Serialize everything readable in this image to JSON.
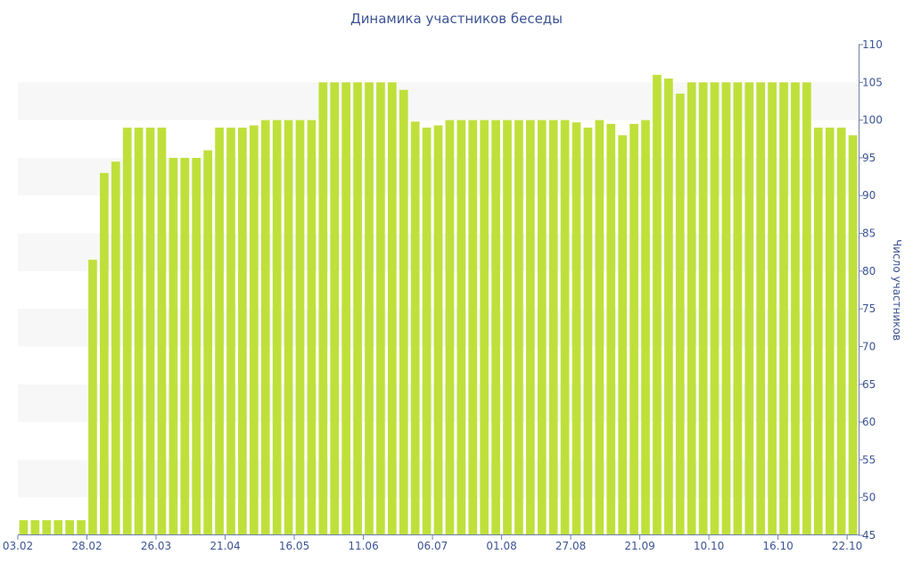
{
  "chart_data": {
    "type": "bar",
    "title": "Динамика участников беседы",
    "xlabel": "",
    "ylabel": "Число участников",
    "y_axis_side": "right",
    "ylim": [
      45,
      110
    ],
    "y_ticks": [
      45,
      50,
      55,
      60,
      65,
      70,
      75,
      80,
      85,
      90,
      95,
      100,
      105,
      110
    ],
    "grid": "alternating horizontal bands",
    "x_tick_labels": [
      {
        "index": 0,
        "label": "03.02"
      },
      {
        "index": 6,
        "label": "28.02"
      },
      {
        "index": 12,
        "label": "26.03"
      },
      {
        "index": 18,
        "label": "21.04"
      },
      {
        "index": 24,
        "label": "16.05"
      },
      {
        "index": 30,
        "label": "11.06"
      },
      {
        "index": 36,
        "label": "06.07"
      },
      {
        "index": 42,
        "label": "01.08"
      },
      {
        "index": 48,
        "label": "27.08"
      },
      {
        "index": 54,
        "label": "21.09"
      },
      {
        "index": 60,
        "label": "10.10"
      },
      {
        "index": 66,
        "label": "16.10"
      },
      {
        "index": 72,
        "label": "22.10"
      }
    ],
    "series": [
      {
        "color": "#bfe03a",
        "values": [
          47,
          47,
          47,
          47,
          47,
          47,
          81.5,
          93,
          94.5,
          99,
          99,
          99,
          99,
          95,
          95,
          95,
          96,
          99,
          99,
          99,
          99.3,
          100,
          100,
          100,
          100,
          100,
          105,
          105,
          105,
          105,
          105,
          105,
          105,
          104,
          99.8,
          99,
          99.3,
          100,
          100,
          100,
          100,
          100,
          100,
          100,
          100,
          100,
          100,
          100,
          99.7,
          99,
          100,
          99.5,
          98,
          99.5,
          100,
          106,
          105.5,
          103.5,
          105,
          105,
          105,
          105,
          105,
          105,
          105,
          105,
          105,
          105,
          105,
          99,
          99,
          99,
          98
        ]
      }
    ]
  },
  "colors": {
    "bar": "#bfe03a",
    "text": "#3c5495",
    "axis": "#6d7fa8",
    "band": "#f7f7f7"
  }
}
